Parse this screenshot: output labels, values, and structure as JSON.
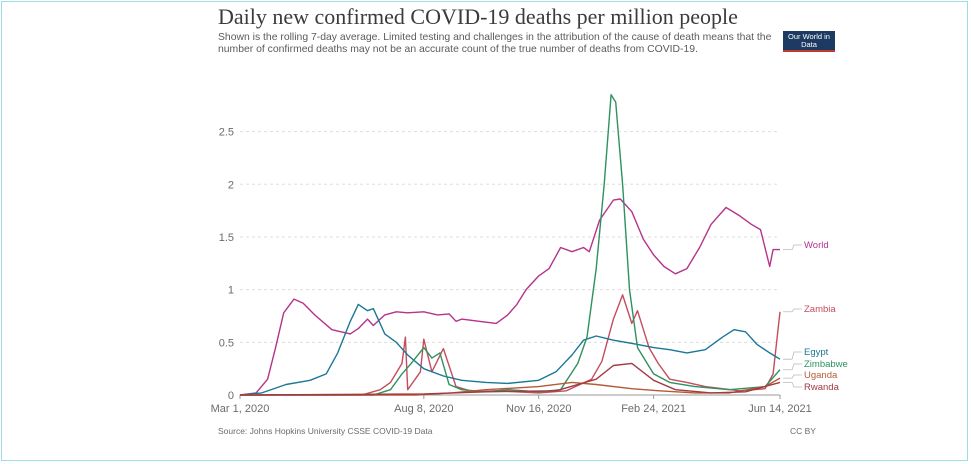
{
  "header": {
    "title": "Daily new confirmed COVID-19 deaths per million people",
    "subtitle": "Shown is the rolling 7-day average. Limited testing and challenges in the attribution of the cause of death means that the number of confirmed deaths may not be an accurate count of the true number of deaths from COVID-19.",
    "logo": "Our World in Data"
  },
  "footer": {
    "source": "Source: Johns Hopkins University CSSE COVID-19 Data",
    "license": "CC BY"
  },
  "chart_data": {
    "type": "line",
    "title": "Daily new confirmed COVID-19 deaths per million people",
    "xlabel": "",
    "ylabel": "",
    "x_range": [
      "2020-03-01",
      "2021-06-14"
    ],
    "x_tick_labels": [
      "Mar 1, 2020",
      "Aug 8, 2020",
      "Nov 16, 2020",
      "Feb 24, 2021",
      "Jun 14, 2021"
    ],
    "y_tick_labels": [
      "0",
      "0.5",
      "1",
      "1.5",
      "2",
      "2.5"
    ],
    "ylim": [
      0,
      2.8
    ],
    "grid": "horizontal dotted",
    "legend": "inline labels at right end",
    "series": [
      {
        "name": "World",
        "color": "#b5338a",
        "points": [
          [
            "2020-03-01",
            0
          ],
          [
            "2020-03-15",
            0.02
          ],
          [
            "2020-03-25",
            0.15
          ],
          [
            "2020-04-01",
            0.45
          ],
          [
            "2020-04-08",
            0.78
          ],
          [
            "2020-04-17",
            0.91
          ],
          [
            "2020-04-25",
            0.87
          ],
          [
            "2020-05-05",
            0.76
          ],
          [
            "2020-05-20",
            0.62
          ],
          [
            "2020-06-05",
            0.58
          ],
          [
            "2020-06-12",
            0.63
          ],
          [
            "2020-06-20",
            0.72
          ],
          [
            "2020-06-25",
            0.66
          ],
          [
            "2020-07-05",
            0.76
          ],
          [
            "2020-07-15",
            0.79
          ],
          [
            "2020-07-25",
            0.78
          ],
          [
            "2020-08-08",
            0.79
          ],
          [
            "2020-08-20",
            0.76
          ],
          [
            "2020-08-30",
            0.77
          ],
          [
            "2020-09-05",
            0.7
          ],
          [
            "2020-09-10",
            0.72
          ],
          [
            "2020-09-25",
            0.7
          ],
          [
            "2020-10-10",
            0.68
          ],
          [
            "2020-10-20",
            0.76
          ],
          [
            "2020-10-28",
            0.86
          ],
          [
            "2020-11-05",
            1.0
          ],
          [
            "2020-11-16",
            1.13
          ],
          [
            "2020-11-25",
            1.2
          ],
          [
            "2020-12-05",
            1.4
          ],
          [
            "2020-12-15",
            1.36
          ],
          [
            "2020-12-25",
            1.4
          ],
          [
            "2020-12-30",
            1.36
          ],
          [
            "2021-01-08",
            1.66
          ],
          [
            "2021-01-20",
            1.85
          ],
          [
            "2021-01-26",
            1.86
          ],
          [
            "2021-02-05",
            1.74
          ],
          [
            "2021-02-15",
            1.48
          ],
          [
            "2021-02-24",
            1.33
          ],
          [
            "2021-03-05",
            1.22
          ],
          [
            "2021-03-15",
            1.15
          ],
          [
            "2021-03-25",
            1.2
          ],
          [
            "2021-04-05",
            1.4
          ],
          [
            "2021-04-15",
            1.62
          ],
          [
            "2021-04-28",
            1.78
          ],
          [
            "2021-05-10",
            1.7
          ],
          [
            "2021-05-20",
            1.62
          ],
          [
            "2021-05-28",
            1.57
          ],
          [
            "2021-06-05",
            1.22
          ],
          [
            "2021-06-08",
            1.38
          ],
          [
            "2021-06-14",
            1.38
          ]
        ]
      },
      {
        "name": "Zambia",
        "color": "#c44d5c",
        "points": [
          [
            "2020-03-01",
            0
          ],
          [
            "2020-06-15",
            0
          ],
          [
            "2020-07-01",
            0.05
          ],
          [
            "2020-07-10",
            0.12
          ],
          [
            "2020-07-20",
            0.3
          ],
          [
            "2020-07-23",
            0.55
          ],
          [
            "2020-07-25",
            0.05
          ],
          [
            "2020-08-05",
            0.22
          ],
          [
            "2020-08-08",
            0.53
          ],
          [
            "2020-08-15",
            0.22
          ],
          [
            "2020-08-25",
            0.44
          ],
          [
            "2020-09-05",
            0.08
          ],
          [
            "2020-09-20",
            0.03
          ],
          [
            "2020-10-10",
            0.04
          ],
          [
            "2020-11-16",
            0.02
          ],
          [
            "2020-12-10",
            0.04
          ],
          [
            "2021-01-01",
            0.15
          ],
          [
            "2021-01-10",
            0.32
          ],
          [
            "2021-01-20",
            0.72
          ],
          [
            "2021-01-28",
            0.95
          ],
          [
            "2021-02-05",
            0.68
          ],
          [
            "2021-02-10",
            0.8
          ],
          [
            "2021-02-20",
            0.45
          ],
          [
            "2021-02-28",
            0.3
          ],
          [
            "2021-03-10",
            0.15
          ],
          [
            "2021-03-25",
            0.12
          ],
          [
            "2021-04-10",
            0.08
          ],
          [
            "2021-05-10",
            0.04
          ],
          [
            "2021-06-01",
            0.06
          ],
          [
            "2021-06-08",
            0.2
          ],
          [
            "2021-06-14",
            0.79
          ]
        ]
      },
      {
        "name": "Egypt",
        "color": "#1a7795",
        "points": [
          [
            "2020-03-01",
            0
          ],
          [
            "2020-03-20",
            0.02
          ],
          [
            "2020-04-10",
            0.1
          ],
          [
            "2020-05-01",
            0.14
          ],
          [
            "2020-05-15",
            0.2
          ],
          [
            "2020-05-25",
            0.4
          ],
          [
            "2020-06-05",
            0.7
          ],
          [
            "2020-06-12",
            0.86
          ],
          [
            "2020-06-20",
            0.8
          ],
          [
            "2020-06-25",
            0.82
          ],
          [
            "2020-07-05",
            0.58
          ],
          [
            "2020-07-15",
            0.5
          ],
          [
            "2020-07-25",
            0.38
          ],
          [
            "2020-08-08",
            0.25
          ],
          [
            "2020-08-25",
            0.18
          ],
          [
            "2020-09-10",
            0.14
          ],
          [
            "2020-10-01",
            0.12
          ],
          [
            "2020-10-20",
            0.11
          ],
          [
            "2020-11-16",
            0.14
          ],
          [
            "2020-12-01",
            0.22
          ],
          [
            "2020-12-15",
            0.38
          ],
          [
            "2020-12-25",
            0.52
          ],
          [
            "2021-01-05",
            0.56
          ],
          [
            "2021-01-20",
            0.52
          ],
          [
            "2021-02-10",
            0.48
          ],
          [
            "2021-02-24",
            0.45
          ],
          [
            "2021-03-10",
            0.43
          ],
          [
            "2021-03-25",
            0.4
          ],
          [
            "2021-04-10",
            0.43
          ],
          [
            "2021-04-25",
            0.55
          ],
          [
            "2021-05-05",
            0.62
          ],
          [
            "2021-05-15",
            0.6
          ],
          [
            "2021-05-25",
            0.48
          ],
          [
            "2021-06-05",
            0.4
          ],
          [
            "2021-06-14",
            0.34
          ]
        ]
      },
      {
        "name": "Zimbabwe",
        "color": "#2e9160",
        "points": [
          [
            "2020-03-01",
            0
          ],
          [
            "2020-06-25",
            0
          ],
          [
            "2020-07-10",
            0.05
          ],
          [
            "2020-07-20",
            0.2
          ],
          [
            "2020-07-28",
            0.3
          ],
          [
            "2020-08-08",
            0.45
          ],
          [
            "2020-08-15",
            0.35
          ],
          [
            "2020-08-22",
            0.4
          ],
          [
            "2020-08-30",
            0.1
          ],
          [
            "2020-09-10",
            0.05
          ],
          [
            "2020-10-01",
            0.03
          ],
          [
            "2020-10-20",
            0.05
          ],
          [
            "2020-11-16",
            0.03
          ],
          [
            "2020-12-05",
            0.05
          ],
          [
            "2020-12-20",
            0.3
          ],
          [
            "2020-12-28",
            0.55
          ],
          [
            "2021-01-05",
            1.2
          ],
          [
            "2021-01-12",
            2.0
          ],
          [
            "2021-01-18",
            2.85
          ],
          [
            "2021-01-22",
            2.78
          ],
          [
            "2021-01-28",
            2.0
          ],
          [
            "2021-02-03",
            1.0
          ],
          [
            "2021-02-10",
            0.45
          ],
          [
            "2021-02-24",
            0.2
          ],
          [
            "2021-03-10",
            0.12
          ],
          [
            "2021-04-01",
            0.08
          ],
          [
            "2021-05-01",
            0.05
          ],
          [
            "2021-06-01",
            0.08
          ],
          [
            "2021-06-14",
            0.24
          ]
        ]
      },
      {
        "name": "Uganda",
        "color": "#b55a36",
        "points": [
          [
            "2020-03-01",
            0
          ],
          [
            "2020-08-01",
            0
          ],
          [
            "2020-09-01",
            0.02
          ],
          [
            "2020-10-01",
            0.05
          ],
          [
            "2020-11-16",
            0.08
          ],
          [
            "2020-12-15",
            0.12
          ],
          [
            "2021-01-05",
            0.1
          ],
          [
            "2021-02-05",
            0.06
          ],
          [
            "2021-03-01",
            0.04
          ],
          [
            "2021-04-01",
            0.02
          ],
          [
            "2021-05-01",
            0.02
          ],
          [
            "2021-06-01",
            0.08
          ],
          [
            "2021-06-14",
            0.16
          ]
        ]
      },
      {
        "name": "Rwanda",
        "color": "#a23a42",
        "points": [
          [
            "2020-03-01",
            0
          ],
          [
            "2020-08-08",
            0.01
          ],
          [
            "2020-10-01",
            0.03
          ],
          [
            "2020-12-01",
            0.04
          ],
          [
            "2021-01-05",
            0.15
          ],
          [
            "2021-01-20",
            0.28
          ],
          [
            "2021-02-05",
            0.3
          ],
          [
            "2021-02-24",
            0.14
          ],
          [
            "2021-03-15",
            0.05
          ],
          [
            "2021-04-15",
            0.02
          ],
          [
            "2021-05-15",
            0.03
          ],
          [
            "2021-06-14",
            0.12
          ]
        ]
      }
    ]
  }
}
